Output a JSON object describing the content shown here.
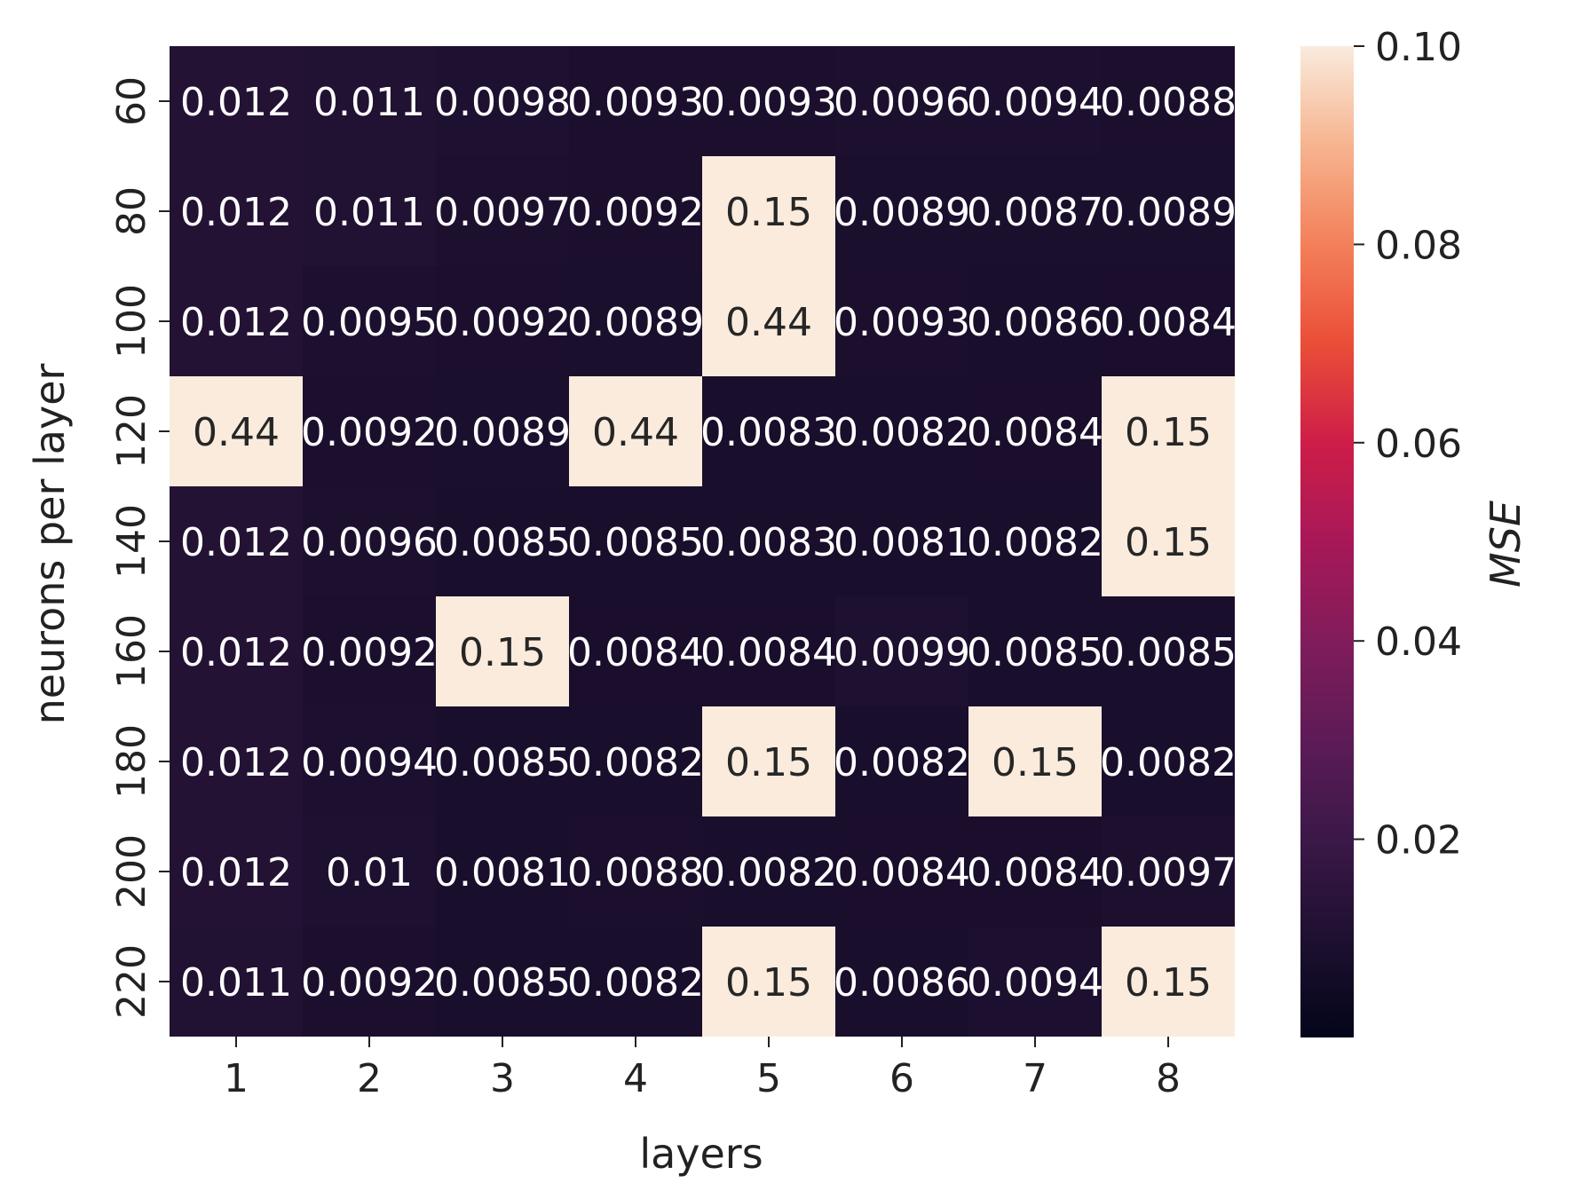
{
  "chart_data": {
    "type": "heatmap",
    "xlabel": "layers",
    "ylabel": "neurons per layer",
    "x_categories": [
      "1",
      "2",
      "3",
      "4",
      "5",
      "6",
      "7",
      "8"
    ],
    "y_categories": [
      "60",
      "80",
      "100",
      "120",
      "140",
      "160",
      "180",
      "200",
      "220"
    ],
    "values": [
      [
        0.012,
        0.011,
        0.0098,
        0.0093,
        0.0093,
        0.0096,
        0.0094,
        0.0088
      ],
      [
        0.012,
        0.011,
        0.0097,
        0.0092,
        0.15,
        0.0089,
        0.0087,
        0.0089
      ],
      [
        0.012,
        0.0095,
        0.0092,
        0.0089,
        0.44,
        0.0093,
        0.0086,
        0.0084
      ],
      [
        0.44,
        0.0092,
        0.0089,
        0.44,
        0.0083,
        0.0082,
        0.0084,
        0.15
      ],
      [
        0.012,
        0.0096,
        0.0085,
        0.0085,
        0.0083,
        0.0081,
        0.0082,
        0.15
      ],
      [
        0.012,
        0.0092,
        0.15,
        0.0084,
        0.0084,
        0.0099,
        0.0085,
        0.0085
      ],
      [
        0.012,
        0.0094,
        0.0085,
        0.0082,
        0.15,
        0.0082,
        0.15,
        0.0082
      ],
      [
        0.012,
        0.01,
        0.0081,
        0.0088,
        0.0082,
        0.0084,
        0.0084,
        0.0097
      ],
      [
        0.011,
        0.0092,
        0.0085,
        0.0082,
        0.15,
        0.0086,
        0.0094,
        0.15
      ]
    ],
    "colorbar": {
      "label": "MSE",
      "vmin": 0.0,
      "vmax": 0.1,
      "ticks": [
        "0.02",
        "0.04",
        "0.06",
        "0.08",
        "0.10"
      ],
      "colormap": "rocket"
    }
  }
}
